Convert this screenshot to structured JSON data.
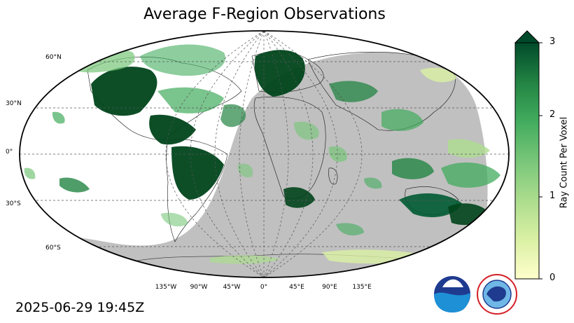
{
  "title": "Average F-Region Observations",
  "timestamp": "2025-06-29 19:45Z",
  "lat_labels": [
    "60°N",
    "30°N",
    "0°",
    "30°S",
    "60°S"
  ],
  "lon_labels": [
    "135°W",
    "90°W",
    "45°W",
    "0°",
    "45°E",
    "90°E",
    "135°E"
  ],
  "colorbar": {
    "label": "Ray Count Per Voxel",
    "ticks": [
      "3",
      "2",
      "1",
      "0"
    ],
    "min": 0,
    "max": 3,
    "colors": [
      "#ffffcc",
      "#d9f0a3",
      "#addd8e",
      "#78c679",
      "#41ab5d",
      "#238443",
      "#005a32"
    ]
  },
  "colors": {
    "night_shade": "#c0c0c0",
    "ocean": "#ffffff",
    "coastline": "#000000"
  },
  "logos": {
    "noaa_text": "NOAA",
    "nws_text": "NATIONAL WEATHER SERVICE"
  }
}
